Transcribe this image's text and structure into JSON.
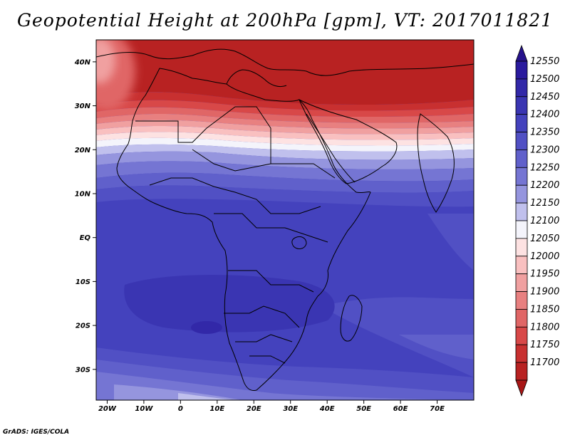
{
  "title": "Geopotential Height at 200hPa [gpm], VT: 2017011821",
  "credit": "GrADS: IGES/COLA",
  "map": {
    "lon_range": [
      -23,
      80
    ],
    "lat_range": [
      -37,
      45
    ],
    "lat_ticks": [
      {
        "value": 40,
        "label": "40N"
      },
      {
        "value": 30,
        "label": "30N"
      },
      {
        "value": 20,
        "label": "20N"
      },
      {
        "value": 10,
        "label": "10N"
      },
      {
        "value": 0,
        "label": "EQ"
      },
      {
        "value": -10,
        "label": "10S"
      },
      {
        "value": -20,
        "label": "20S"
      },
      {
        "value": -30,
        "label": "30S"
      }
    ],
    "lon_ticks": [
      {
        "value": -20,
        "label": "20W"
      },
      {
        "value": -10,
        "label": "10W"
      },
      {
        "value": 0,
        "label": "0"
      },
      {
        "value": 10,
        "label": "10E"
      },
      {
        "value": 20,
        "label": "20E"
      },
      {
        "value": 30,
        "label": "30E"
      },
      {
        "value": 40,
        "label": "40E"
      },
      {
        "value": 50,
        "label": "50E"
      },
      {
        "value": 60,
        "label": "60E"
      },
      {
        "value": 70,
        "label": "70E"
      }
    ]
  },
  "colorbar": {
    "levels": [
      {
        "label": "12550",
        "color": "#2a1a9e"
      },
      {
        "label": "12500",
        "color": "#3228a8"
      },
      {
        "label": "12450",
        "color": "#3a35b2"
      },
      {
        "label": "12400",
        "color": "#4442bd"
      },
      {
        "label": "12350",
        "color": "#5150c4"
      },
      {
        "label": "12300",
        "color": "#6060cb"
      },
      {
        "label": "12250",
        "color": "#7575d3"
      },
      {
        "label": "12200",
        "color": "#9595de"
      },
      {
        "label": "12150",
        "color": "#c0c0ed"
      },
      {
        "label": "12100",
        "color": "#f4f4fb"
      },
      {
        "label": "12050",
        "color": "#fde2e2"
      },
      {
        "label": "12000",
        "color": "#f9c0c0"
      },
      {
        "label": "11950",
        "color": "#f0a0a0"
      },
      {
        "label": "11900",
        "color": "#e88080"
      },
      {
        "label": "11850",
        "color": "#e06666"
      },
      {
        "label": "11800",
        "color": "#d84848"
      },
      {
        "label": "11750",
        "color": "#c83030"
      },
      {
        "label": "11700",
        "color": "#b82222"
      }
    ],
    "top_color": "#26128c",
    "bottom_color": "#a81616"
  }
}
